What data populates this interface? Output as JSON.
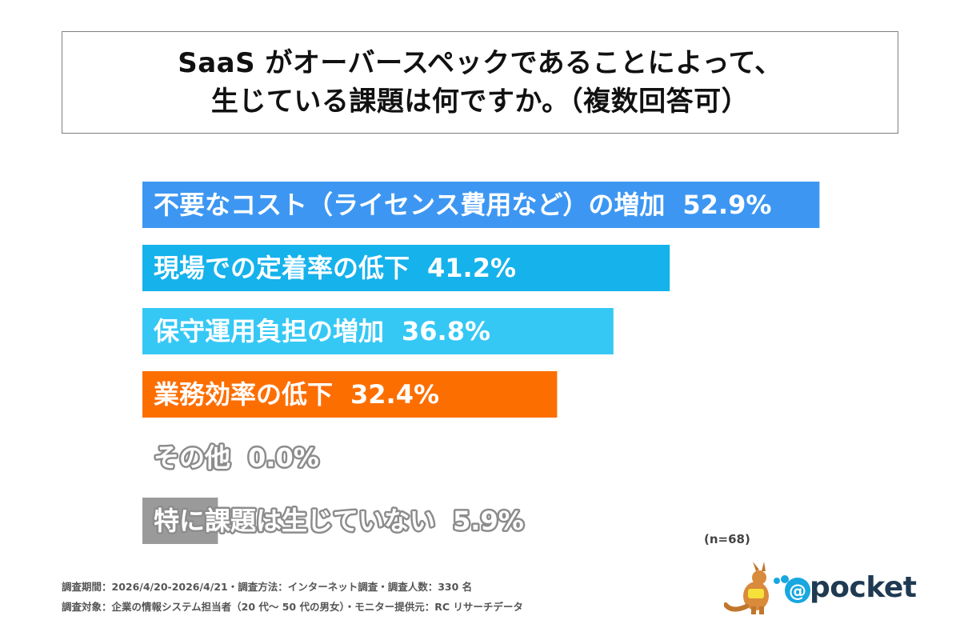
{
  "title": {
    "line1": "SaaS がオーバースペックであることによって、",
    "line2": "生じている課題は何ですか。（複数回答可）"
  },
  "chart_data": {
    "type": "bar",
    "orientation": "horizontal",
    "xlim": [
      0,
      100
    ],
    "categories": [
      "不要なコスト（ライセンス費用など）の増加",
      "現場での定着率の低下",
      "保守運用負担の増加",
      "業務効率の低下",
      "その他",
      "特に課題は生じていない"
    ],
    "values": [
      52.9,
      41.2,
      36.8,
      32.4,
      0.0,
      5.9
    ],
    "value_labels": [
      "52.9%",
      "41.2%",
      "36.8%",
      "32.4%",
      "0.0%",
      "5.9%"
    ],
    "colors": [
      "#3d97f2",
      "#15b2ec",
      "#35c8f5",
      "#fd6e00",
      "#9a9a9a",
      "#9a9a9a"
    ],
    "n_label": "(n=68)"
  },
  "notes": {
    "line1": "調査期間：2026/4/20-2026/4/21・調査方法：インターネット調査・調査人数：330 名",
    "line2": "調査対象：企業の情報システム担当者（20 代～ 50 代の男女）・モニター提供元：RC リサーチデータ"
  },
  "logo": {
    "text": "@pocket",
    "icon": "kangaroo-mascot-icon"
  }
}
